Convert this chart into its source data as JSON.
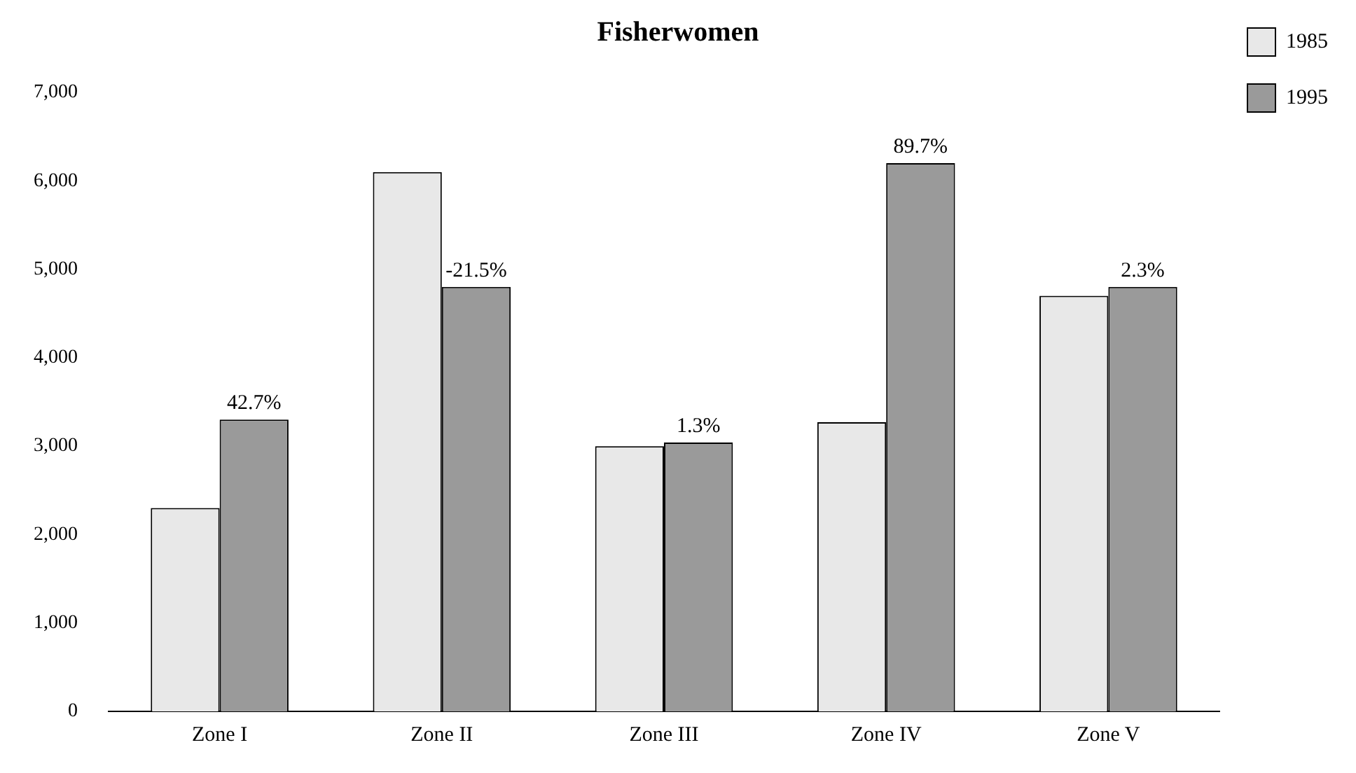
{
  "chart_data": {
    "type": "bar",
    "title": "Fisherwomen",
    "categories": [
      "Zone I",
      "Zone II",
      "Zone III",
      "Zone IV",
      "Zone V"
    ],
    "series": [
      {
        "name": "1985",
        "color": "#e8e8e8",
        "values": [
          2300,
          6100,
          3000,
          3270,
          4700
        ]
      },
      {
        "name": "1995",
        "color": "#9a9a9a",
        "values": [
          3300,
          4800,
          3040,
          6200,
          4800
        ]
      }
    ],
    "ylim": [
      0,
      7000
    ],
    "yticks": [
      {
        "value": 0,
        "label": "0"
      },
      {
        "value": 1000,
        "label": "1,000"
      },
      {
        "value": 2000,
        "label": "2,000"
      },
      {
        "value": 3000,
        "label": "3,000"
      },
      {
        "value": 4000,
        "label": "4,000"
      },
      {
        "value": 5000,
        "label": "5,000"
      },
      {
        "value": 6000,
        "label": "6,000"
      },
      {
        "value": 7000,
        "label": "7,000"
      }
    ],
    "annotations": [
      {
        "text": "42.7%",
        "x": "Zone I",
        "y": 3300
      },
      {
        "text": "-21.5%",
        "x": "Zone II",
        "y": 4800
      },
      {
        "text": "1.3%",
        "x": "Zone III",
        "y": 3040
      },
      {
        "text": "89.7%",
        "x": "Zone IV",
        "y": 6200
      },
      {
        "text": "2.3%",
        "x": "Zone V",
        "y": 4800
      }
    ],
    "grid": false,
    "legend": "top right"
  }
}
